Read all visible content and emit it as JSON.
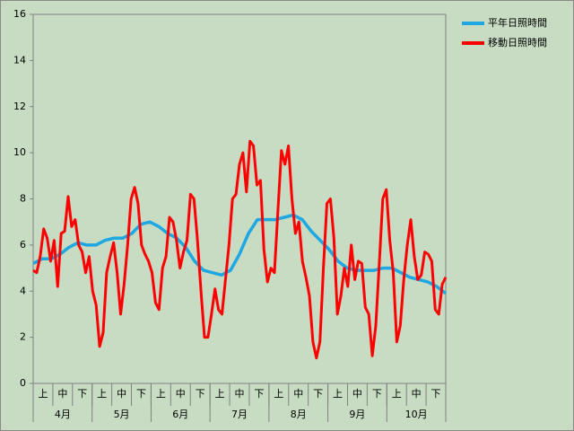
{
  "chart_data": {
    "type": "line",
    "months": [
      "4月",
      "5月",
      "6月",
      "7月",
      "8月",
      "9月",
      "10月"
    ],
    "dekads": [
      "上",
      "中",
      "下",
      "上",
      "中",
      "下",
      "上",
      "中",
      "下",
      "上",
      "中",
      "下",
      "上",
      "中",
      "下",
      "上",
      "中",
      "下",
      "上",
      "中",
      "下"
    ],
    "ylim": [
      0,
      16
    ],
    "yticks": [
      0,
      2,
      4,
      6,
      8,
      10,
      12,
      14,
      16
    ],
    "series": [
      {
        "name": "平年日照時間",
        "color": "#1ea7e1",
        "values": [
          5.2,
          5.4,
          5.4,
          5.6,
          5.9,
          6.1,
          6.0,
          6.0,
          6.2,
          6.3,
          6.3,
          6.5,
          6.9,
          7.0,
          6.8,
          6.5,
          6.3,
          5.9,
          5.3,
          4.9,
          4.8,
          4.7,
          4.9,
          5.6,
          6.5,
          7.1,
          7.1,
          7.1,
          7.2,
          7.3,
          7.1,
          6.6,
          6.2,
          5.8,
          5.3,
          5.0,
          4.9,
          4.9,
          4.9,
          5.0,
          5.0,
          4.8,
          4.6,
          4.5,
          4.4,
          4.2,
          3.9
        ]
      },
      {
        "name": "移動日照時間",
        "color": "#ff0000",
        "values": [
          4.9,
          4.8,
          5.5,
          6.7,
          6.3,
          5.3,
          6.2,
          4.2,
          6.5,
          6.6,
          8.1,
          6.8,
          7.1,
          6.0,
          5.7,
          4.8,
          5.5,
          4.0,
          3.4,
          1.6,
          2.2,
          4.8,
          5.5,
          6.1,
          4.8,
          3.0,
          4.3,
          6.0,
          8.0,
          8.5,
          7.8,
          6.0,
          5.6,
          5.3,
          4.8,
          3.5,
          3.2,
          5.0,
          5.5,
          7.2,
          7.0,
          6.2,
          5.0,
          5.7,
          6.2,
          8.2,
          8.0,
          6.2,
          4.0,
          2.0,
          2.0,
          3.0,
          4.1,
          3.2,
          3.0,
          4.5,
          6.0,
          8.0,
          8.2,
          9.5,
          10.0,
          8.3,
          10.5,
          10.3,
          8.6,
          8.8,
          5.8,
          4.4,
          5.0,
          4.8,
          7.5,
          10.1,
          9.5,
          10.3,
          8.0,
          6.5,
          7.0,
          5.3,
          4.6,
          3.8,
          1.8,
          1.1,
          1.8,
          5.0,
          7.8,
          8.0,
          6.3,
          3.0,
          3.8,
          5.0,
          4.2,
          6.0,
          4.5,
          5.3,
          5.2,
          3.3,
          3.0,
          1.2,
          2.5,
          5.2,
          8.0,
          8.4,
          6.2,
          4.8,
          1.8,
          2.5,
          4.5,
          6.0,
          7.1,
          5.5,
          4.5,
          4.7,
          5.7,
          5.6,
          5.3,
          3.2,
          3.0,
          4.3,
          4.6
        ]
      }
    ]
  }
}
